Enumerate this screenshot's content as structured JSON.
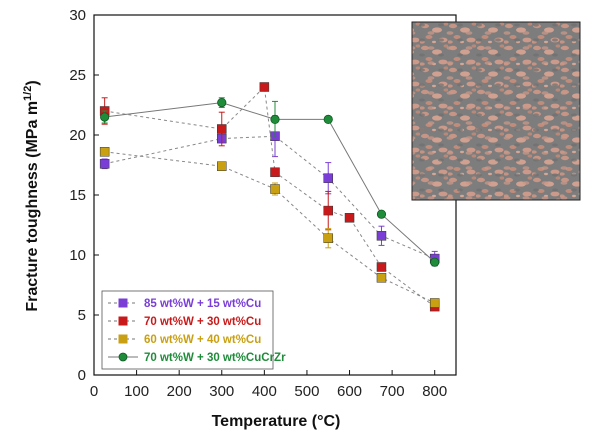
{
  "chart_data": {
    "type": "line",
    "xlabel": "Temperature (°C)",
    "ylabel": "Fracture toughness (MPa m",
    "ylabel_sup": "1/2",
    "ylabel_end": ")",
    "xlim": [
      0,
      850
    ],
    "ylim": [
      0,
      30
    ],
    "xticks": [
      0,
      100,
      200,
      300,
      400,
      500,
      600,
      700,
      800
    ],
    "yticks": [
      0,
      5,
      10,
      15,
      20,
      25,
      30
    ],
    "grid": false,
    "legend_position": "bottom-left",
    "inset": "micrograph",
    "series": [
      {
        "name": "85 wt%W + 15 wt%Cu",
        "color": "#7a3ed6",
        "line": "dashed",
        "marker": "square",
        "points": [
          {
            "x": 25,
            "y": 17.6,
            "err": 0.4
          },
          {
            "x": 300,
            "y": 19.7,
            "err": 0.0
          },
          {
            "x": 425,
            "y": 19.9,
            "err": 1.7
          },
          {
            "x": 550,
            "y": 16.4,
            "err": 1.3
          },
          {
            "x": 675,
            "y": 11.6,
            "err": 0.8
          },
          {
            "x": 800,
            "y": 9.7,
            "err": 0.6
          }
        ]
      },
      {
        "name": "70 wt%W + 30 wt%Cu",
        "color": "#c81a1a",
        "line": "dashed",
        "marker": "square",
        "points": [
          {
            "x": 25,
            "y": 22.0,
            "err": 1.1
          },
          {
            "x": 300,
            "y": 20.5,
            "err": 1.4
          },
          {
            "x": 400,
            "y": 24.0,
            "err": 0.0
          },
          {
            "x": 425,
            "y": 16.9,
            "err": 0.0
          },
          {
            "x": 550,
            "y": 13.7,
            "err": 1.6
          },
          {
            "x": 600,
            "y": 13.1,
            "err": 0.0
          },
          {
            "x": 675,
            "y": 9.0,
            "err": 0.0
          },
          {
            "x": 800,
            "y": 5.7,
            "err": 0.0
          }
        ]
      },
      {
        "name": "60 wt%W + 40 wt%Cu",
        "color": "#c9a012",
        "line": "dashed",
        "marker": "square",
        "points": [
          {
            "x": 25,
            "y": 18.6,
            "err": 0.3
          },
          {
            "x": 300,
            "y": 17.4,
            "err": 0.0
          },
          {
            "x": 425,
            "y": 15.5,
            "err": 0.5
          },
          {
            "x": 550,
            "y": 11.4,
            "err": 0.8
          },
          {
            "x": 675,
            "y": 8.1,
            "err": 0.0
          },
          {
            "x": 800,
            "y": 6.0,
            "err": 0.0
          }
        ]
      },
      {
        "name": "70 wt%W + 30 wt%CuCrZr",
        "color": "#1f8c3a",
        "line": "solid",
        "marker": "circle",
        "points": [
          {
            "x": 25,
            "y": 21.5,
            "err": 0.5
          },
          {
            "x": 300,
            "y": 22.7,
            "err": 0.4
          },
          {
            "x": 425,
            "y": 21.3,
            "err": 1.5
          },
          {
            "x": 550,
            "y": 21.3,
            "err": 0.0
          },
          {
            "x": 675,
            "y": 13.4,
            "err": 0.0
          },
          {
            "x": 800,
            "y": 9.4,
            "err": 0.0
          }
        ]
      }
    ]
  }
}
